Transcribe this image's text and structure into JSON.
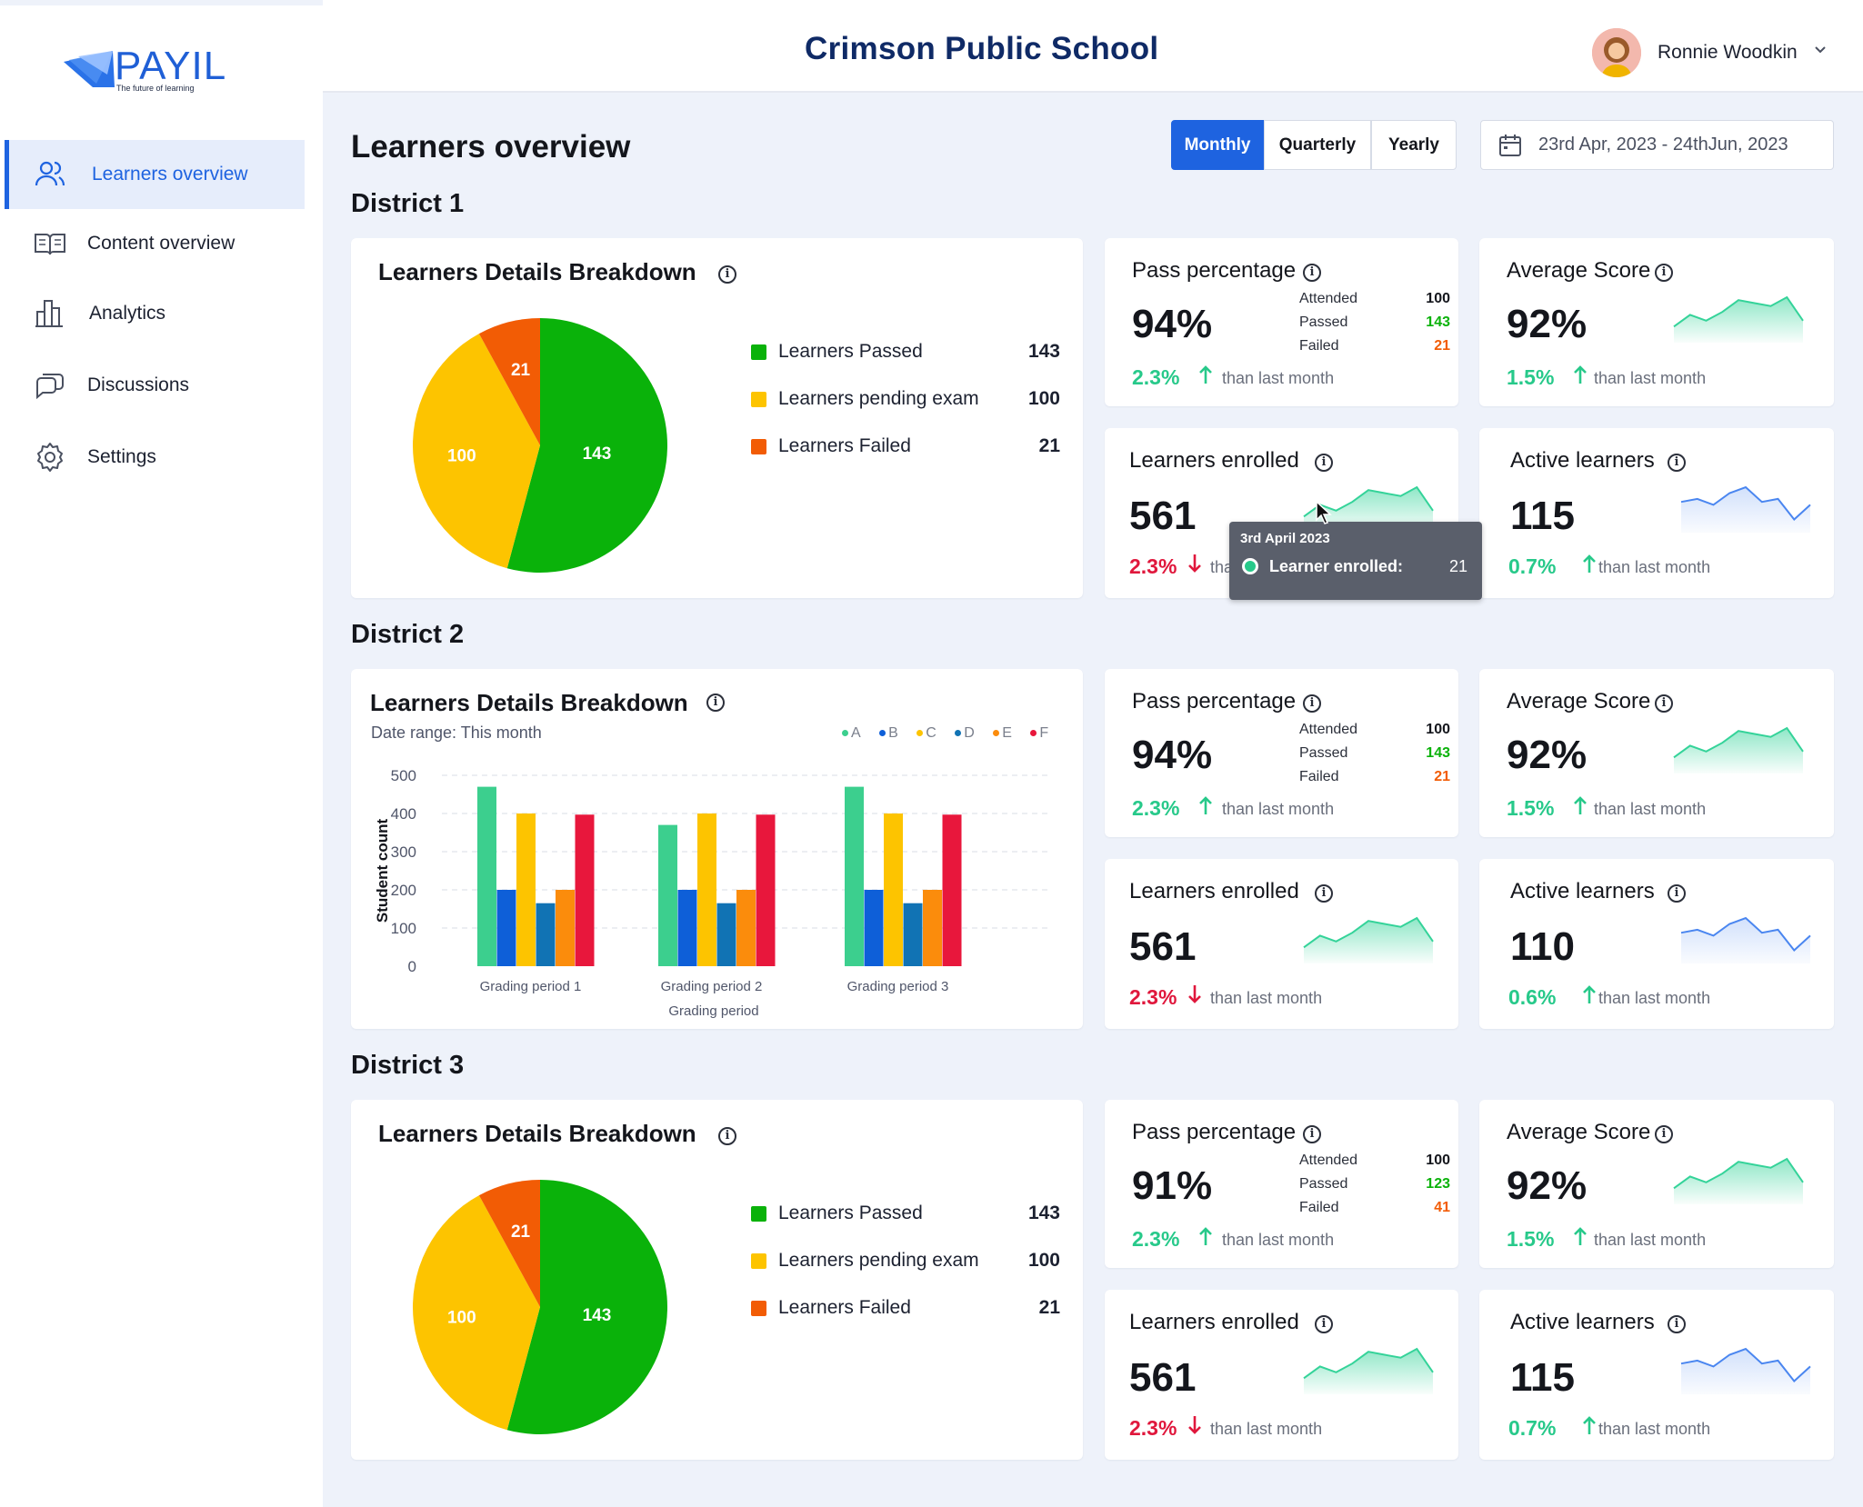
{
  "app": {
    "logo_text": "PAYIL",
    "logo_tagline": "The future of learning",
    "school_name": "Crimson Public School"
  },
  "user": {
    "name": "Ronnie Woodkin"
  },
  "sidebar": {
    "items": [
      {
        "label": "Learners overview",
        "icon": "users-icon",
        "active": true
      },
      {
        "label": "Content overview",
        "icon": "book-open-icon",
        "active": false
      },
      {
        "label": "Analytics",
        "icon": "bar-chart-icon",
        "active": false
      },
      {
        "label": "Discussions",
        "icon": "chat-bubbles-icon",
        "active": false
      },
      {
        "label": "Settings",
        "icon": "gear-icon",
        "active": false
      }
    ]
  },
  "toolbar": {
    "page_title": "Learners overview",
    "periods": [
      "Monthly",
      "Quarterly",
      "Yearly"
    ],
    "selected_period": "Monthly",
    "date_range": "23rd Apr, 2023 - 24thJun, 2023"
  },
  "colors": {
    "accent": "#1e63e0",
    "passed": "#0ab20a",
    "pending": "#fdc400",
    "failed": "#f25c05",
    "up": "#27c98a",
    "down": "#e0173c",
    "spark_green": "#34d399",
    "spark_blue": "#4a86f0"
  },
  "districts": [
    {
      "name": "District 1",
      "breakdown": {
        "title": "Learners Details Breakdown",
        "legend": [
          {
            "label": "Learners Passed",
            "value": "143"
          },
          {
            "label": "Learners pending exam",
            "value": "100"
          },
          {
            "label": "Learners Failed",
            "value": "21"
          }
        ],
        "slice_labels": [
          "143",
          "100",
          "21"
        ]
      },
      "pass": {
        "title": "Pass percentage",
        "value": "94%",
        "delta": "2.3%",
        "note": "than last month",
        "stats": {
          "attended_label": "Attended",
          "attended": "100",
          "passed_label": "Passed",
          "passed": "143",
          "failed_label": "Failed",
          "failed": "21"
        }
      },
      "avg": {
        "title": "Average Score",
        "value": "92%",
        "delta": "1.5%",
        "note": "than last month"
      },
      "enrolled": {
        "title": "Learners enrolled",
        "value": "561",
        "delta": "2.3%",
        "note": "than last month"
      },
      "active": {
        "title": "Active learners",
        "value": "115",
        "delta": "0.7%",
        "note": "than last month"
      }
    },
    {
      "name": "District 2",
      "breakdown": {
        "title": "Learners Details Breakdown",
        "subtitle": "Date range: This month"
      },
      "pass": {
        "title": "Pass percentage",
        "value": "94%",
        "delta": "2.3%",
        "note": "than last month",
        "stats": {
          "attended_label": "Attended",
          "attended": "100",
          "passed_label": "Passed",
          "passed": "143",
          "failed_label": "Failed",
          "failed": "21"
        }
      },
      "avg": {
        "title": "Average Score",
        "value": "92%",
        "delta": "1.5%",
        "note": "than last month"
      },
      "enrolled": {
        "title": "Learners enrolled",
        "value": "561",
        "delta": "2.3%",
        "note": "than last month"
      },
      "active": {
        "title": "Active learners",
        "value": "110",
        "delta": "0.6%",
        "note": "than last month"
      }
    },
    {
      "name": "District 3",
      "breakdown": {
        "title": "Learners Details Breakdown",
        "legend": [
          {
            "label": "Learners Passed",
            "value": "143"
          },
          {
            "label": "Learners pending exam",
            "value": "100"
          },
          {
            "label": "Learners Failed",
            "value": "21"
          }
        ],
        "slice_labels": [
          "143",
          "100",
          "21"
        ]
      },
      "pass": {
        "title": "Pass percentage",
        "value": "91%",
        "delta": "2.3%",
        "note": "than last month",
        "stats": {
          "attended_label": "Attended",
          "attended": "100",
          "passed_label": "Passed",
          "passed": "123",
          "failed_label": "Failed",
          "failed": "41"
        }
      },
      "avg": {
        "title": "Average Score",
        "value": "92%",
        "delta": "1.5%",
        "note": "than last month"
      },
      "enrolled": {
        "title": "Learners enrolled",
        "value": "561",
        "delta": "2.3%",
        "note": "than last month"
      },
      "active": {
        "title": "Active learners",
        "value": "115",
        "delta": "0.7%",
        "note": "than last month"
      }
    }
  ],
  "tooltip": {
    "date": "3rd April 2023",
    "label": "Learner enrolled:",
    "value": "21"
  },
  "chart_data": [
    {
      "type": "pie",
      "categories": [
        "Learners Passed",
        "Learners pending exam",
        "Learners Failed"
      ],
      "values": [
        143,
        100,
        21
      ],
      "colors": [
        "#0ab20a",
        "#fdc400",
        "#f25c05"
      ]
    },
    {
      "type": "bar",
      "title": "Learners Details Breakdown",
      "subtitle": "Date range: This month",
      "xlabel": "Grading period",
      "ylabel": "Student count",
      "categories": [
        "Grading period 1",
        "Grading period 2",
        "Grading period 3"
      ],
      "ylim": [
        0,
        500
      ],
      "yticks": [
        0,
        100,
        200,
        300,
        400,
        500
      ],
      "grid": true,
      "legend_position": "top-right",
      "series": [
        {
          "name": "A",
          "color": "#3ccf8e",
          "values": [
            470,
            370,
            470
          ]
        },
        {
          "name": "B",
          "color": "#0e5fd8",
          "values": [
            200,
            200,
            200
          ]
        },
        {
          "name": "C",
          "color": "#fdc400",
          "values": [
            400,
            400,
            400
          ]
        },
        {
          "name": "D",
          "color": "#1173b4",
          "values": [
            165,
            165,
            165
          ]
        },
        {
          "name": "E",
          "color": "#fb8c0c",
          "values": [
            200,
            200,
            200
          ]
        },
        {
          "name": "F",
          "color": "#e8173c",
          "values": [
            397,
            397,
            397
          ]
        }
      ]
    },
    {
      "type": "pie",
      "categories": [
        "Learners Passed",
        "Learners pending exam",
        "Learners Failed"
      ],
      "values": [
        143,
        100,
        21
      ],
      "colors": [
        "#0ab20a",
        "#fdc400",
        "#f25c05"
      ]
    }
  ],
  "sparklines": {
    "avg": [
      3,
      7,
      5,
      8,
      12,
      11,
      10,
      13,
      5
    ],
    "enrolled": [
      3,
      7,
      5,
      8,
      12,
      11,
      10,
      13,
      5
    ],
    "active": [
      8,
      9,
      7,
      11,
      13,
      8,
      9,
      2,
      7
    ]
  }
}
